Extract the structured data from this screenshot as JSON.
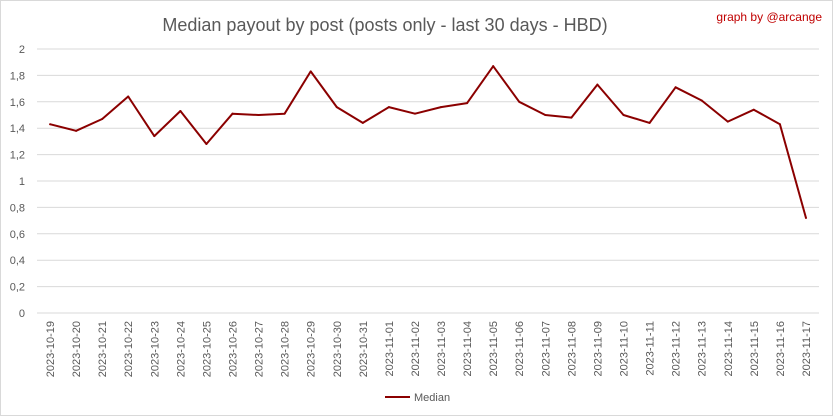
{
  "chart_data": {
    "type": "line",
    "title": "Median payout by post (posts only - last 30 days - HBD)",
    "credit": "graph by @arcange",
    "xlabel": "",
    "ylabel": "",
    "ylim": [
      0,
      2
    ],
    "yticks": [
      "0",
      "0,2",
      "0,4",
      "0,6",
      "0,8",
      "1",
      "1,2",
      "1,4",
      "1,6",
      "1,8",
      "2"
    ],
    "grid": true,
    "legend_position": "bottom",
    "categories": [
      "2023-10-19",
      "2023-10-20",
      "2023-10-21",
      "2023-10-22",
      "2023-10-23",
      "2023-10-24",
      "2023-10-25",
      "2023-10-26",
      "2023-10-27",
      "2023-10-28",
      "2023-10-29",
      "2023-10-30",
      "2023-10-31",
      "2023-11-01",
      "2023-11-02",
      "2023-11-03",
      "2023-11-04",
      "2023-11-05",
      "2023-11-06",
      "2023-11-07",
      "2023-11-08",
      "2023-11-09",
      "2023-11-10",
      "2023-11-11",
      "2023-11-12",
      "2023-11-13",
      "2023-11-14",
      "2023-11-15",
      "2023-11-16",
      "2023-11-17"
    ],
    "series": [
      {
        "name": "Median",
        "color": "#8b0000",
        "values": [
          1.43,
          1.38,
          1.47,
          1.64,
          1.34,
          1.53,
          1.28,
          1.51,
          1.5,
          1.51,
          1.83,
          1.56,
          1.44,
          1.56,
          1.51,
          1.56,
          1.59,
          1.87,
          1.6,
          1.5,
          1.48,
          1.73,
          1.5,
          1.44,
          1.71,
          1.61,
          1.45,
          1.54,
          1.43,
          0.72
        ]
      }
    ]
  }
}
